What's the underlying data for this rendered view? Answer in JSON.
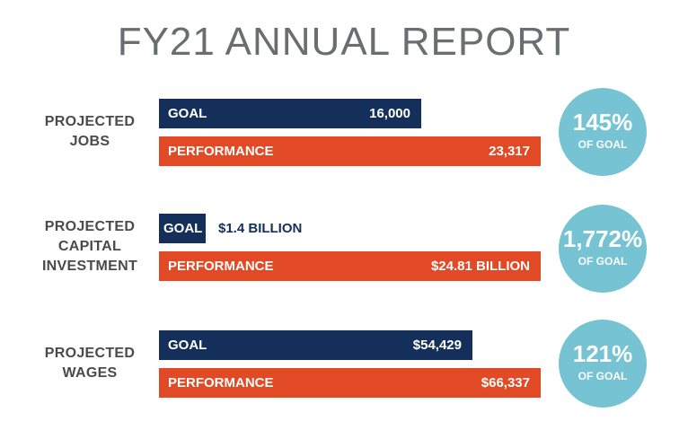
{
  "title": "FY21 ANNUAL REPORT",
  "chart_data": {
    "type": "bar",
    "series_names": [
      "GOAL",
      "PERFORMANCE"
    ],
    "groups": [
      {
        "label_lines": [
          "PROJECTED",
          "JOBS"
        ],
        "goal": {
          "label": "GOAL",
          "value": 16000,
          "display": "16,000"
        },
        "performance": {
          "label": "PERFORMANCE",
          "value": 23317,
          "display": "23,317"
        },
        "percent_of_goal": {
          "value": "145%",
          "caption": "OF GOAL"
        }
      },
      {
        "label_lines": [
          "PROJECTED",
          "CAPITAL",
          "INVESTMENT"
        ],
        "goal": {
          "label": "GOAL",
          "value": 1.4,
          "display": "$1.4 BILLION"
        },
        "performance": {
          "label": "PERFORMANCE",
          "value": 24.81,
          "display": "$24.81 BILLION"
        },
        "percent_of_goal": {
          "value": "1,772%",
          "caption": "OF GOAL"
        }
      },
      {
        "label_lines": [
          "PROJECTED",
          "WAGES"
        ],
        "goal": {
          "label": "GOAL",
          "value": 54429,
          "display": "$54,429"
        },
        "performance": {
          "label": "PERFORMANCE",
          "value": 66337,
          "display": "$66,337"
        },
        "percent_of_goal": {
          "value": "121%",
          "caption": "OF GOAL"
        }
      }
    ],
    "colors": {
      "goal": "#14305a",
      "performance": "#e24a26",
      "circle": "#76c3d4"
    }
  }
}
